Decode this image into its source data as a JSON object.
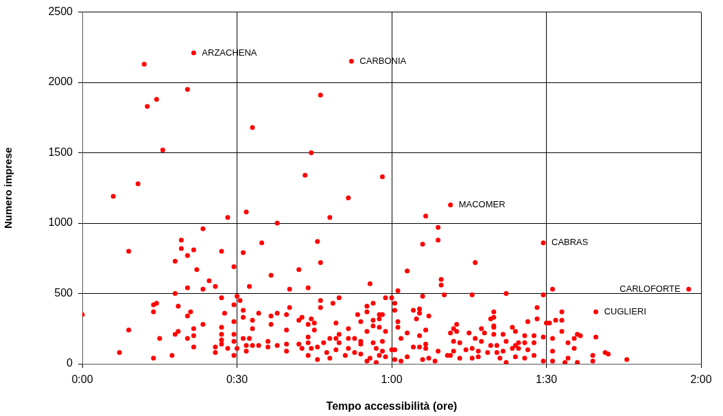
{
  "chart_data": {
    "type": "scatter",
    "xlabel": "Tempo accessibilità (ore)",
    "ylabel": "Numero imprese",
    "xlim": [
      0,
      2
    ],
    "xticks": [
      {
        "value": 0,
        "label": "0:00"
      },
      {
        "value": 0.5,
        "label": "0:30"
      },
      {
        "value": 1,
        "label": "1:00"
      },
      {
        "value": 1.5,
        "label": "1:30"
      },
      {
        "value": 2,
        "label": "2:00"
      }
    ],
    "ylim": [
      0,
      2500
    ],
    "yticks": [
      0,
      500,
      1000,
      1500,
      2000,
      2500
    ],
    "grid": true,
    "legend": false,
    "marker": "circle",
    "annotations": [
      {
        "text": "ARZACHENA",
        "x": 0.36,
        "y": 2210
      },
      {
        "text": "CARBONIA",
        "x": 0.87,
        "y": 2150
      },
      {
        "text": "MACOMER",
        "x": 1.19,
        "y": 1130
      },
      {
        "text": "CABRAS",
        "x": 1.49,
        "y": 860
      },
      {
        "text": "CARLOFORTE",
        "x": 1.96,
        "y": 530
      },
      {
        "text": "CUGLIERI",
        "x": 1.66,
        "y": 370
      }
    ],
    "series": [
      {
        "color": "#ff0000",
        "x": [
          0.0,
          0.15,
          0.15,
          0.12,
          0.23,
          0.29,
          0.23,
          0.24,
          0.23,
          0.25,
          0.3,
          0.3,
          0.31,
          0.32,
          0.32,
          0.34,
          0.34,
          0.35,
          0.34,
          0.36,
          0.36,
          0.37,
          0.39,
          0.41,
          0.43,
          0.39,
          0.3,
          0.31,
          0.34,
          0.36,
          0.36,
          0.39,
          0.43,
          0.43,
          0.45,
          0.45,
          0.45,
          0.45,
          0.47,
          0.46,
          0.45,
          0.45,
          0.47,
          0.49,
          0.49,
          0.49,
          0.49,
          0.49,
          0.49,
          0.2,
          0.36,
          0.87,
          0.34,
          0.24,
          0.21,
          0.77,
          0.55,
          0.26,
          0.74,
          0.18,
          0.1,
          0.72,
          0.97,
          0.86,
          1.19,
          0.53,
          0.63,
          0.8,
          0.52,
          0.58,
          0.76,
          0.77,
          0.7,
          0.61,
          0.54,
          0.67,
          0.73,
          0.93,
          1.02,
          0.5,
          0.51,
          0.52,
          0.52,
          0.57,
          0.55,
          0.55,
          0.52,
          0.54,
          0.61,
          0.63,
          0.66,
          0.67,
          0.61,
          0.66,
          0.7,
          0.71,
          0.74,
          0.73,
          0.75,
          0.75,
          0.73,
          0.77,
          0.77,
          0.81,
          0.83,
          0.82,
          0.83,
          0.86,
          0.86,
          0.88,
          0.89,
          0.9,
          0.92,
          0.92,
          0.94,
          0.92,
          0.94,
          0.96,
          0.97,
          0.96,
          0.94,
          0.96,
          0.98,
          0.97,
          0.98,
          1.0,
          1.01,
          1.01,
          0.5,
          0.53,
          0.53,
          0.55,
          0.57,
          0.6,
          0.6,
          0.63,
          0.66,
          0.66,
          0.7,
          0.71,
          0.73,
          0.74,
          0.73,
          0.76,
          0.76,
          0.78,
          0.8,
          0.82,
          0.83,
          0.79,
          0.82,
          0.8,
          0.85,
          0.86,
          0.88,
          0.9,
          0.9,
          0.92,
          0.93,
          0.94,
          0.95,
          0.96,
          0.95,
          0.97,
          0.98,
          1.0,
          1.01,
          0.9,
          1.11,
          1.15,
          1.1,
          1.15,
          1.49,
          1.27,
          1.05,
          1.16,
          1.16,
          1.52,
          1.96,
          1.1,
          1.17,
          1.26,
          1.37,
          1.49,
          1.66,
          1.55,
          1.47,
          1.33,
          1.07,
          1.09,
          1.09,
          1.08,
          1.12,
          1.02,
          1.02,
          1.47,
          1.53,
          1.55,
          1.44,
          1.5,
          1.51,
          1.32,
          1.33,
          1.33,
          1.33,
          1.21,
          1.2,
          1.21,
          1.11,
          1.05,
          1.09,
          1.03,
          1.19,
          1.25,
          1.29,
          1.3,
          1.36,
          1.39,
          1.4,
          1.43,
          1.33,
          1.27,
          1.46,
          1.49,
          1.55,
          1.52,
          1.6,
          1.61,
          1.59,
          1.66,
          1.57,
          1.11,
          1.07,
          1.09,
          1.2,
          1.22,
          1.29,
          1.37,
          1.4,
          1.41,
          1.43,
          1.46,
          1.32,
          1.34,
          1.11,
          1.15,
          1.2,
          1.24,
          1.26,
          1.28,
          1.31,
          1.34,
          1.36,
          1.39,
          1.41,
          1.44,
          1.46,
          1.52,
          1.59,
          1.01,
          1.05,
          1.1,
          1.12,
          1.14,
          1.18,
          1.19,
          1.22,
          1.26,
          1.28,
          1.35,
          1.37,
          1.4,
          1.43,
          1.49,
          1.52,
          1.56,
          1.57,
          1.6,
          1.65,
          1.65,
          1.69,
          1.7,
          1.76,
          1.03
        ],
        "values": [
          350,
          800,
          240,
          80,
          40,
          60,
          420,
          430,
          370,
          180,
          730,
          500,
          410,
          880,
          820,
          770,
          540,
          370,
          340,
          250,
          810,
          670,
          960,
          590,
          550,
          530,
          210,
          230,
          180,
          200,
          120,
          280,
          120,
          80,
          260,
          210,
          170,
          140,
          110,
          360,
          470,
          800,
          1040,
          690,
          420,
          210,
          300,
          60,
          160,
          2130,
          2210,
          2150,
          1950,
          1880,
          1830,
          1910,
          1680,
          1520,
          1500,
          1280,
          1190,
          1340,
          1330,
          1180,
          1130,
          1080,
          1000,
          1040,
          790,
          860,
          870,
          720,
          670,
          630,
          550,
          530,
          540,
          570,
          520,
          480,
          450,
          380,
          330,
          360,
          310,
          250,
          180,
          180,
          340,
          360,
          350,
          400,
          280,
          240,
          310,
          330,
          320,
          280,
          290,
          240,
          190,
          450,
          400,
          430,
          470,
          290,
          210,
          250,
          180,
          180,
          350,
          300,
          410,
          370,
          430,
          230,
          310,
          350,
          350,
          320,
          270,
          260,
          230,
          160,
          470,
          470,
          430,
          380,
          110,
          130,
          90,
          130,
          130,
          160,
          120,
          130,
          140,
          90,
          140,
          110,
          150,
          110,
          60,
          30,
          120,
          150,
          180,
          180,
          150,
          80,
          100,
          40,
          60,
          110,
          80,
          140,
          70,
          20,
          40,
          150,
          110,
          60,
          10,
          90,
          50,
          100,
          30,
          160,
          1050,
          970,
          850,
          880,
          860,
          720,
          660,
          600,
          560,
          530,
          530,
          480,
          490,
          490,
          500,
          490,
          370,
          370,
          400,
          370,
          380,
          390,
          360,
          320,
          340,
          300,
          260,
          320,
          310,
          310,
          300,
          290,
          290,
          320,
          330,
          270,
          260,
          280,
          250,
          230,
          240,
          220,
          200,
          180,
          220,
          220,
          250,
          220,
          210,
          260,
          230,
          200,
          210,
          180,
          200,
          190,
          230,
          180,
          210,
          200,
          180,
          190,
          150,
          140,
          120,
          120,
          160,
          150,
          160,
          160,
          130,
          150,
          150,
          150,
          130,
          130,
          110,
          90,
          90,
          100,
          110,
          90,
          80,
          80,
          90,
          110,
          110,
          100,
          60,
          90,
          110,
          100,
          50,
          30,
          40,
          20,
          60,
          60,
          40,
          40,
          50,
          40,
          10,
          50,
          40,
          20,
          20,
          10,
          40,
          10,
          60,
          20,
          80,
          70,
          30,
          20
        ]
      }
    ]
  }
}
